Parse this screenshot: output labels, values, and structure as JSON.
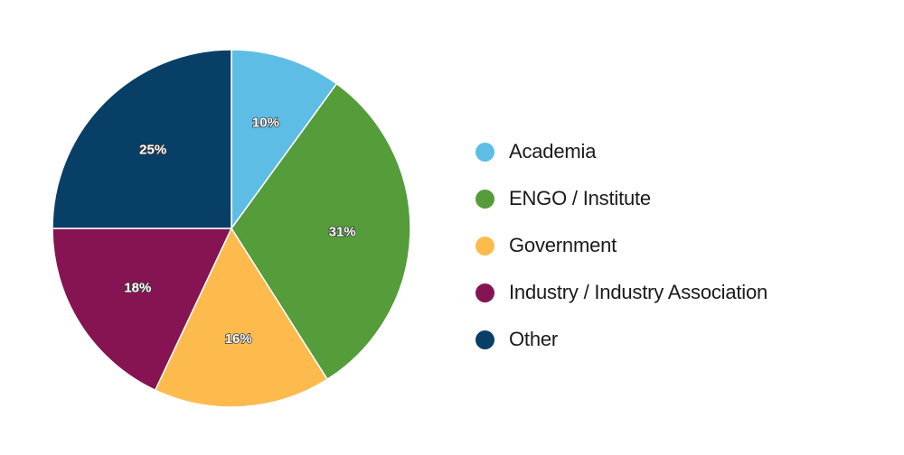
{
  "chart_data": {
    "type": "pie",
    "title": "",
    "categories": [
      "Academia",
      "ENGO / Institute",
      "Government",
      "Industry / Industry Association",
      "Other"
    ],
    "values": [
      10,
      31,
      16,
      18,
      25
    ],
    "labels": [
      "10%",
      "31%",
      "16%",
      "18%",
      "25%"
    ],
    "colors": [
      "#5DBDE5",
      "#559C3A",
      "#FDBB4E",
      "#861452",
      "#083F66"
    ],
    "start_angle": "12 o'clock",
    "direction": "clockwise",
    "legend_position": "right"
  },
  "legend": {
    "items": [
      {
        "label": "Academia",
        "color": "#5DBDE5"
      },
      {
        "label": "ENGO / Institute",
        "color": "#559C3A"
      },
      {
        "label": "Government",
        "color": "#FDBB4E"
      },
      {
        "label": "Industry / Industry Association",
        "color": "#861452"
      },
      {
        "label": "Other",
        "color": "#083F66"
      }
    ]
  }
}
